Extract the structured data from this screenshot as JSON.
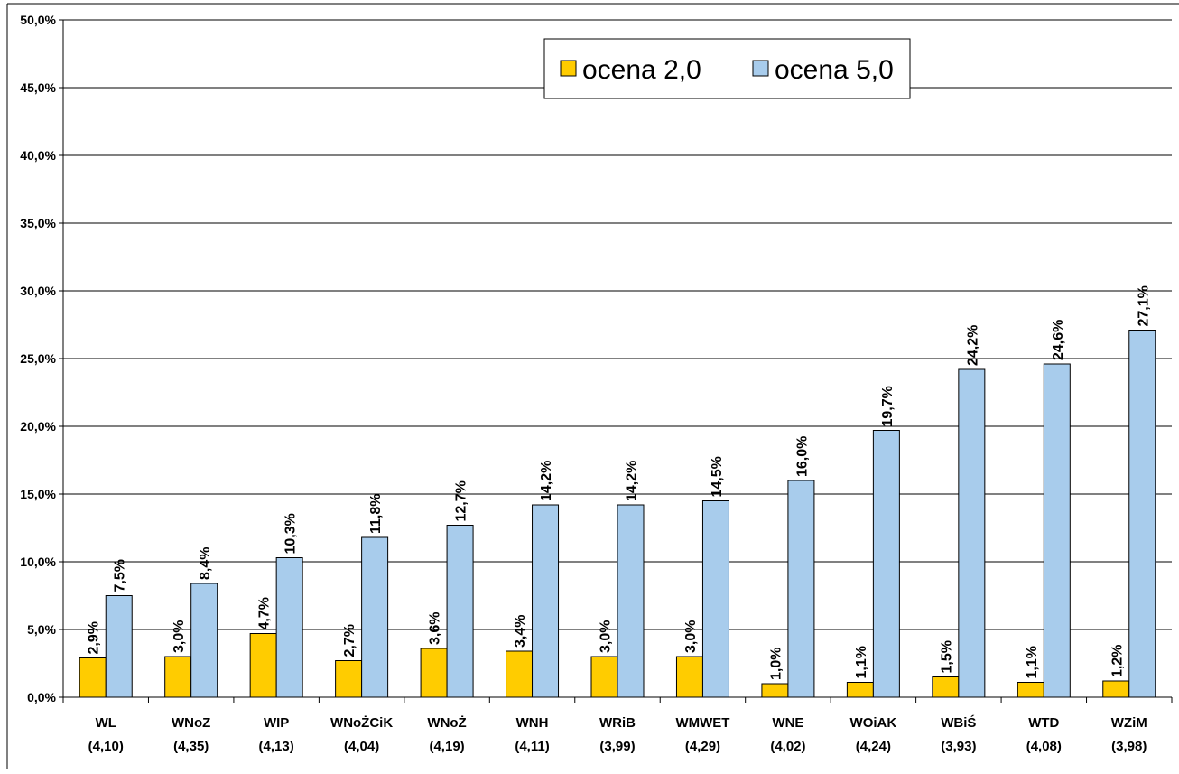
{
  "chart_data": {
    "type": "bar",
    "title": "",
    "xlabel": "",
    "ylabel": "",
    "ylim": [
      0,
      50
    ],
    "ytick_values": [
      0,
      5,
      10,
      15,
      20,
      25,
      30,
      35,
      40,
      45,
      50
    ],
    "ytick_labels": [
      "0,0%",
      "5,0%",
      "10,0%",
      "15,0%",
      "20,0%",
      "25,0%",
      "30,0%",
      "35,0%",
      "40,0%",
      "45,0%",
      "50,0%"
    ],
    "grid": true,
    "legend_position": "top-right",
    "categories": [
      "WL",
      "WNoZ",
      "WIP",
      "WNoŻCiK",
      "WNoŻ",
      "WNH",
      "WRiB",
      "WMWET",
      "WNE",
      "WOiAK",
      "WBiŚ",
      "WTD",
      "WZiM"
    ],
    "category_sublabels": [
      "(4,10)",
      "(4,35)",
      "(4,13)",
      "(4,04)",
      "(4,19)",
      "(4,11)",
      "(3,99)",
      "(4,29)",
      "(4,02)",
      "(4,24)",
      "(3,93)",
      "(4,08)",
      "(3,98)"
    ],
    "series": [
      {
        "name": "ocena 2,0",
        "color": "#FFCC00",
        "values": [
          2.9,
          3.0,
          4.7,
          2.7,
          3.6,
          3.4,
          3.0,
          3.0,
          1.0,
          1.1,
          1.5,
          1.1,
          1.2
        ],
        "labels": [
          "2,9%",
          "3,0%",
          "4,7%",
          "2,7%",
          "3,6%",
          "3,4%",
          "3,0%",
          "3,0%",
          "1,0%",
          "1,1%",
          "1,5%",
          "1,1%",
          "1,2%"
        ]
      },
      {
        "name": "ocena 5,0",
        "color": "#A8CCEC",
        "values": [
          7.5,
          8.4,
          10.3,
          11.8,
          12.7,
          14.2,
          14.2,
          14.5,
          16.0,
          19.7,
          24.2,
          24.6,
          27.1
        ],
        "labels": [
          "7,5%",
          "8,4%",
          "10,3%",
          "11,8%",
          "12,7%",
          "14,2%",
          "14,2%",
          "14,5%",
          "16,0%",
          "19,7%",
          "24,2%",
          "24,6%",
          "27,1%"
        ]
      }
    ]
  }
}
